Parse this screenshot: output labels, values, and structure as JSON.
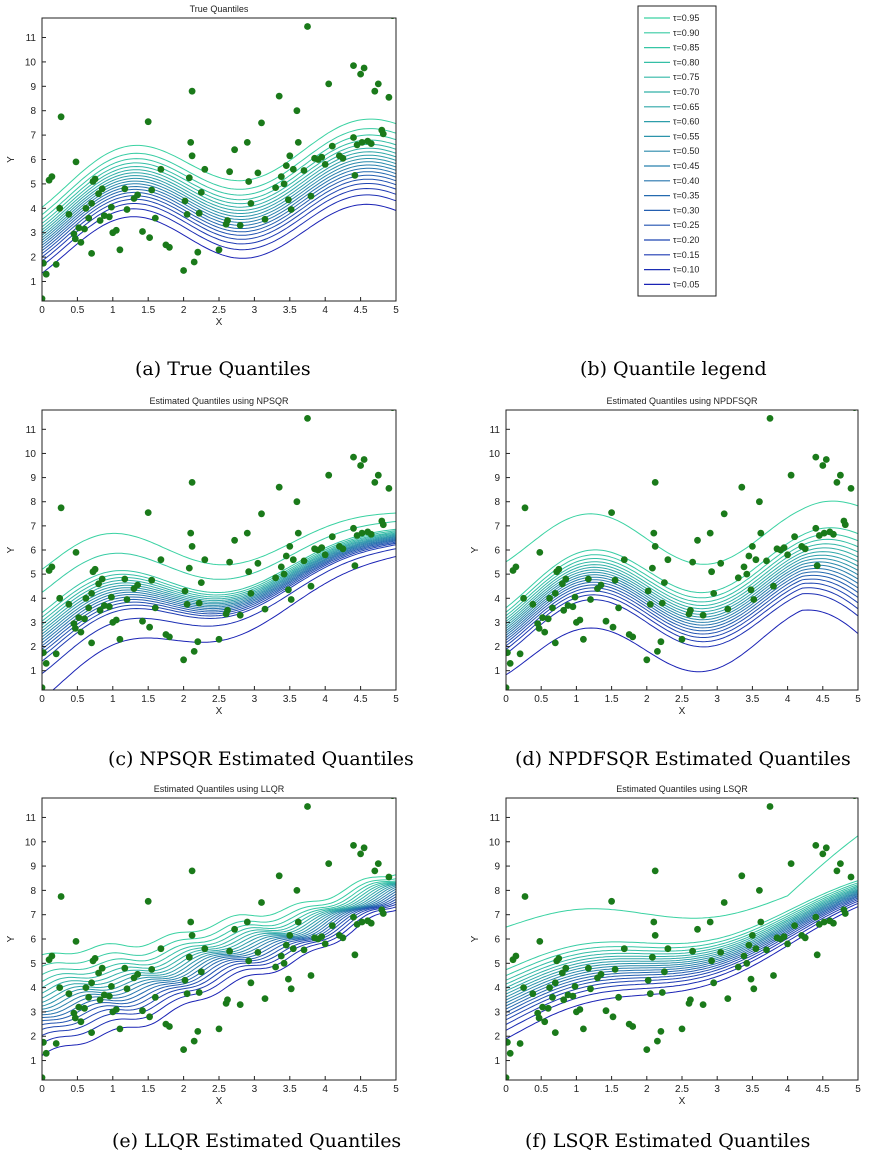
{
  "panels": [
    {
      "id": "a",
      "title": "True Quantiles",
      "caption": "(a) True Quantiles"
    },
    {
      "id": "c",
      "title": "Estimated Quantiles using NPSQR",
      "caption": "(c) NPSQR Estimated Quantiles"
    },
    {
      "id": "d",
      "title": "Estimated Quantiles using NPDFSQR",
      "caption": "(d) NPDFSQR Estimated Quantiles"
    },
    {
      "id": "e",
      "title": "Estimated Quantiles using LLQR",
      "caption": "(e) LLQR Estimated Quantiles"
    },
    {
      "id": "f",
      "title": "Estimated Quantiles using LSQR",
      "caption": "(f) LSQR Estimated Quantiles"
    }
  ],
  "legend": {
    "caption": "(b) Quantile legend",
    "entries": [
      "τ=0.95",
      "τ=0.90",
      "τ=0.85",
      "τ=0.80",
      "τ=0.75",
      "τ=0.70",
      "τ=0.65",
      "τ=0.60",
      "τ=0.55",
      "τ=0.50",
      "τ=0.45",
      "τ=0.40",
      "τ=0.35",
      "τ=0.30",
      "τ=0.25",
      "τ=0.20",
      "τ=0.15",
      "τ=0.10",
      "τ=0.05"
    ],
    "colors": [
      "#3ad2a2",
      "#38cca4",
      "#36c6a5",
      "#34bfa6",
      "#33b8a7",
      "#31b0a8",
      "#2fa7a9",
      "#2d9eaa",
      "#2b94ab",
      "#2a8aac",
      "#2880ad",
      "#2675ae",
      "#246aaf",
      "#235eb0",
      "#2152b1",
      "#1f46b2",
      "#1e3ab3",
      "#1c2eb4",
      "#1a22b5"
    ]
  },
  "colors": {
    "points": "#1a7a1a",
    "axis": "#222222"
  },
  "chart_data": [
    {
      "type": "line",
      "panel": "a",
      "title": "True Quantiles",
      "xlabel": "X",
      "ylabel": "Y",
      "xlim": [
        0,
        5
      ],
      "ylim": [
        0.2,
        11.8
      ],
      "xticks": [
        0,
        0.5,
        1,
        1.5,
        2,
        2.5,
        3,
        3.5,
        4,
        4.5,
        5
      ],
      "yticks": [
        1,
        2,
        3,
        4,
        5,
        6,
        7,
        8,
        9,
        10,
        11
      ],
      "method": "true",
      "tau": [
        0.95,
        0.9,
        0.85,
        0.8,
        0.75,
        0.7,
        0.65,
        0.6,
        0.55,
        0.5,
        0.45,
        0.4,
        0.35,
        0.3,
        0.25,
        0.2,
        0.15,
        0.1,
        0.05
      ],
      "points": [
        [
          0.0,
          0.3
        ],
        [
          0.02,
          1.75
        ],
        [
          0.06,
          1.3
        ],
        [
          0.1,
          5.15
        ],
        [
          0.14,
          5.3
        ],
        [
          0.2,
          1.7
        ],
        [
          0.25,
          4.0
        ],
        [
          0.27,
          7.75
        ],
        [
          0.38,
          3.75
        ],
        [
          0.45,
          2.95
        ],
        [
          0.47,
          2.75
        ],
        [
          0.48,
          5.9
        ],
        [
          0.52,
          3.2
        ],
        [
          0.55,
          2.6
        ],
        [
          0.6,
          3.15
        ],
        [
          0.62,
          4.0
        ],
        [
          0.66,
          3.6
        ],
        [
          0.7,
          2.15
        ],
        [
          0.7,
          4.2
        ],
        [
          0.72,
          5.1
        ],
        [
          0.75,
          5.2
        ],
        [
          0.8,
          4.6
        ],
        [
          0.82,
          3.5
        ],
        [
          0.85,
          4.8
        ],
        [
          0.88,
          3.7
        ],
        [
          0.95,
          3.65
        ],
        [
          0.98,
          4.05
        ],
        [
          1.0,
          3.0
        ],
        [
          1.05,
          3.1
        ],
        [
          1.1,
          2.3
        ],
        [
          1.17,
          4.8
        ],
        [
          1.2,
          3.95
        ],
        [
          1.3,
          4.4
        ],
        [
          1.35,
          4.55
        ],
        [
          1.42,
          3.05
        ],
        [
          1.5,
          7.55
        ],
        [
          1.52,
          2.8
        ],
        [
          1.55,
          4.75
        ],
        [
          1.6,
          3.6
        ],
        [
          1.68,
          5.6
        ],
        [
          1.75,
          2.5
        ],
        [
          1.8,
          2.4
        ],
        [
          2.0,
          1.45
        ],
        [
          2.02,
          4.3
        ],
        [
          2.05,
          3.75
        ],
        [
          2.08,
          5.25
        ],
        [
          2.1,
          6.7
        ],
        [
          2.12,
          8.8
        ],
        [
          2.12,
          6.15
        ],
        [
          2.15,
          1.8
        ],
        [
          2.2,
          2.2
        ],
        [
          2.22,
          3.8
        ],
        [
          2.25,
          4.65
        ],
        [
          2.3,
          5.6
        ],
        [
          2.5,
          2.3
        ],
        [
          2.6,
          3.35
        ],
        [
          2.62,
          3.5
        ],
        [
          2.65,
          5.5
        ],
        [
          2.72,
          6.4
        ],
        [
          2.8,
          3.3
        ],
        [
          2.9,
          6.7
        ],
        [
          2.92,
          5.1
        ],
        [
          2.95,
          4.2
        ],
        [
          3.05,
          5.45
        ],
        [
          3.1,
          7.5
        ],
        [
          3.15,
          3.55
        ],
        [
          3.3,
          4.85
        ],
        [
          3.35,
          8.6
        ],
        [
          3.38,
          5.3
        ],
        [
          3.42,
          5.0
        ],
        [
          3.45,
          5.75
        ],
        [
          3.48,
          4.35
        ],
        [
          3.5,
          6.15
        ],
        [
          3.52,
          3.95
        ],
        [
          3.55,
          5.6
        ],
        [
          3.6,
          8.0
        ],
        [
          3.62,
          6.7
        ],
        [
          3.7,
          5.55
        ],
        [
          3.75,
          11.45
        ],
        [
          3.8,
          4.5
        ],
        [
          3.85,
          6.05
        ],
        [
          3.9,
          6.0
        ],
        [
          3.95,
          6.1
        ],
        [
          4.0,
          5.8
        ],
        [
          4.05,
          9.1
        ],
        [
          4.1,
          6.55
        ],
        [
          4.2,
          6.15
        ],
        [
          4.25,
          6.05
        ],
        [
          4.4,
          9.85
        ],
        [
          4.4,
          6.9
        ],
        [
          4.42,
          5.35
        ],
        [
          4.45,
          6.6
        ],
        [
          4.5,
          9.5
        ],
        [
          4.52,
          6.7
        ],
        [
          4.55,
          9.75
        ],
        [
          4.6,
          6.75
        ],
        [
          4.65,
          6.65
        ],
        [
          4.7,
          8.8
        ],
        [
          4.75,
          9.1
        ],
        [
          4.8,
          7.2
        ],
        [
          4.82,
          7.05
        ],
        [
          4.9,
          8.55
        ],
        [
          4.95,
          11.9
        ]
      ]
    },
    {
      "type": "line",
      "panel": "c",
      "title": "Estimated Quantiles using NPSQR",
      "xlabel": "X",
      "ylabel": "Y",
      "xlim": [
        0,
        5
      ],
      "ylim": [
        0.2,
        11.8
      ],
      "xticks": [
        0,
        0.5,
        1,
        1.5,
        2,
        2.5,
        3,
        3.5,
        4,
        4.5,
        5
      ],
      "yticks": [
        1,
        2,
        3,
        4,
        5,
        6,
        7,
        8,
        9,
        10,
        11
      ],
      "method": "npsqr"
    },
    {
      "type": "line",
      "panel": "d",
      "title": "Estimated Quantiles using NPDFSQR",
      "xlabel": "X",
      "ylabel": "Y",
      "xlim": [
        0,
        5
      ],
      "ylim": [
        0.2,
        11.8
      ],
      "xticks": [
        0,
        0.5,
        1,
        1.5,
        2,
        2.5,
        3,
        3.5,
        4,
        4.5,
        5
      ],
      "yticks": [
        1,
        2,
        3,
        4,
        5,
        6,
        7,
        8,
        9,
        10,
        11
      ],
      "method": "npdfsqr"
    },
    {
      "type": "line",
      "panel": "e",
      "title": "Estimated Quantiles using LLQR",
      "xlabel": "X",
      "ylabel": "Y",
      "xlim": [
        0,
        5
      ],
      "ylim": [
        0.2,
        11.8
      ],
      "xticks": [
        0,
        0.5,
        1,
        1.5,
        2,
        2.5,
        3,
        3.5,
        4,
        4.5,
        5
      ],
      "yticks": [
        1,
        2,
        3,
        4,
        5,
        6,
        7,
        8,
        9,
        10,
        11
      ],
      "method": "llqr"
    },
    {
      "type": "line",
      "panel": "f",
      "title": "Estimated Quantiles using LSQR",
      "xlabel": "X",
      "ylabel": "Y",
      "xlim": [
        0,
        5
      ],
      "ylim": [
        0.2,
        11.8
      ],
      "xticks": [
        0,
        0.5,
        1,
        1.5,
        2,
        2.5,
        3,
        3.5,
        4,
        4.5,
        5
      ],
      "yticks": [
        1,
        2,
        3,
        4,
        5,
        6,
        7,
        8,
        9,
        10,
        11
      ],
      "method": "lsqr"
    }
  ]
}
